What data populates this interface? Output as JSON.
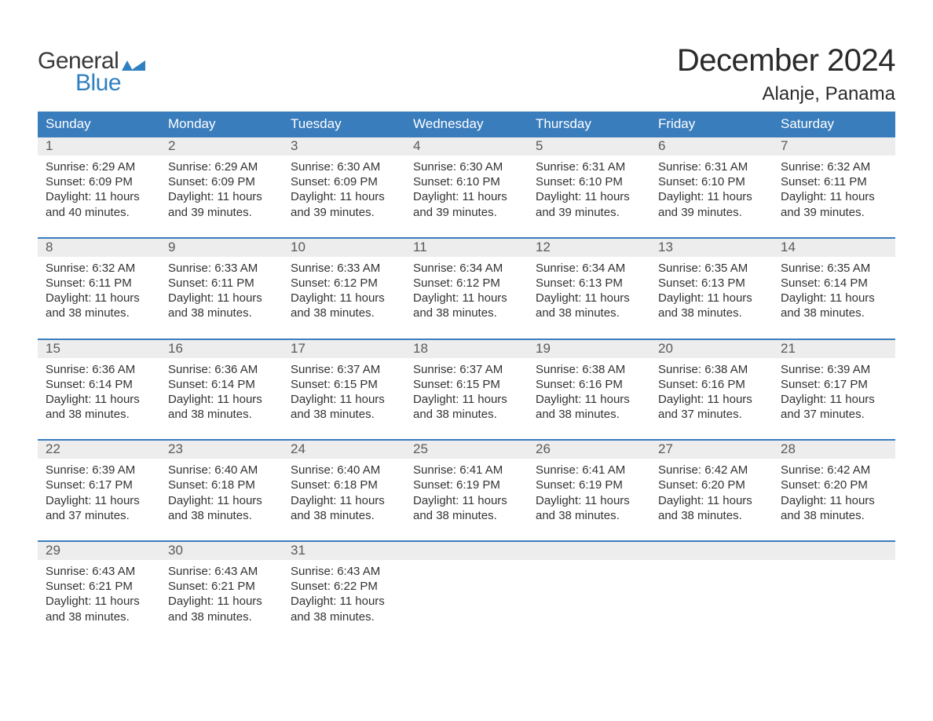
{
  "logo": {
    "word1": "General",
    "word2": "Blue"
  },
  "title": "December 2024",
  "location": "Alanje, Panama",
  "colors": {
    "header_bg": "#3a7dbd",
    "header_text": "#ffffff",
    "daynum_bg": "#ededed",
    "daynum_text": "#5a5a5a",
    "body_text": "#333333",
    "logo_gray": "#3a3a3a",
    "logo_blue": "#2f7fc1",
    "week_border": "#3a7dbd"
  },
  "dow": [
    "Sunday",
    "Monday",
    "Tuesday",
    "Wednesday",
    "Thursday",
    "Friday",
    "Saturday"
  ],
  "weeks": [
    [
      {
        "n": "1",
        "sr": "Sunrise: 6:29 AM",
        "ss": "Sunset: 6:09 PM",
        "d1": "Daylight: 11 hours",
        "d2": "and 40 minutes."
      },
      {
        "n": "2",
        "sr": "Sunrise: 6:29 AM",
        "ss": "Sunset: 6:09 PM",
        "d1": "Daylight: 11 hours",
        "d2": "and 39 minutes."
      },
      {
        "n": "3",
        "sr": "Sunrise: 6:30 AM",
        "ss": "Sunset: 6:09 PM",
        "d1": "Daylight: 11 hours",
        "d2": "and 39 minutes."
      },
      {
        "n": "4",
        "sr": "Sunrise: 6:30 AM",
        "ss": "Sunset: 6:10 PM",
        "d1": "Daylight: 11 hours",
        "d2": "and 39 minutes."
      },
      {
        "n": "5",
        "sr": "Sunrise: 6:31 AM",
        "ss": "Sunset: 6:10 PM",
        "d1": "Daylight: 11 hours",
        "d2": "and 39 minutes."
      },
      {
        "n": "6",
        "sr": "Sunrise: 6:31 AM",
        "ss": "Sunset: 6:10 PM",
        "d1": "Daylight: 11 hours",
        "d2": "and 39 minutes."
      },
      {
        "n": "7",
        "sr": "Sunrise: 6:32 AM",
        "ss": "Sunset: 6:11 PM",
        "d1": "Daylight: 11 hours",
        "d2": "and 39 minutes."
      }
    ],
    [
      {
        "n": "8",
        "sr": "Sunrise: 6:32 AM",
        "ss": "Sunset: 6:11 PM",
        "d1": "Daylight: 11 hours",
        "d2": "and 38 minutes."
      },
      {
        "n": "9",
        "sr": "Sunrise: 6:33 AM",
        "ss": "Sunset: 6:11 PM",
        "d1": "Daylight: 11 hours",
        "d2": "and 38 minutes."
      },
      {
        "n": "10",
        "sr": "Sunrise: 6:33 AM",
        "ss": "Sunset: 6:12 PM",
        "d1": "Daylight: 11 hours",
        "d2": "and 38 minutes."
      },
      {
        "n": "11",
        "sr": "Sunrise: 6:34 AM",
        "ss": "Sunset: 6:12 PM",
        "d1": "Daylight: 11 hours",
        "d2": "and 38 minutes."
      },
      {
        "n": "12",
        "sr": "Sunrise: 6:34 AM",
        "ss": "Sunset: 6:13 PM",
        "d1": "Daylight: 11 hours",
        "d2": "and 38 minutes."
      },
      {
        "n": "13",
        "sr": "Sunrise: 6:35 AM",
        "ss": "Sunset: 6:13 PM",
        "d1": "Daylight: 11 hours",
        "d2": "and 38 minutes."
      },
      {
        "n": "14",
        "sr": "Sunrise: 6:35 AM",
        "ss": "Sunset: 6:14 PM",
        "d1": "Daylight: 11 hours",
        "d2": "and 38 minutes."
      }
    ],
    [
      {
        "n": "15",
        "sr": "Sunrise: 6:36 AM",
        "ss": "Sunset: 6:14 PM",
        "d1": "Daylight: 11 hours",
        "d2": "and 38 minutes."
      },
      {
        "n": "16",
        "sr": "Sunrise: 6:36 AM",
        "ss": "Sunset: 6:14 PM",
        "d1": "Daylight: 11 hours",
        "d2": "and 38 minutes."
      },
      {
        "n": "17",
        "sr": "Sunrise: 6:37 AM",
        "ss": "Sunset: 6:15 PM",
        "d1": "Daylight: 11 hours",
        "d2": "and 38 minutes."
      },
      {
        "n": "18",
        "sr": "Sunrise: 6:37 AM",
        "ss": "Sunset: 6:15 PM",
        "d1": "Daylight: 11 hours",
        "d2": "and 38 minutes."
      },
      {
        "n": "19",
        "sr": "Sunrise: 6:38 AM",
        "ss": "Sunset: 6:16 PM",
        "d1": "Daylight: 11 hours",
        "d2": "and 38 minutes."
      },
      {
        "n": "20",
        "sr": "Sunrise: 6:38 AM",
        "ss": "Sunset: 6:16 PM",
        "d1": "Daylight: 11 hours",
        "d2": "and 37 minutes."
      },
      {
        "n": "21",
        "sr": "Sunrise: 6:39 AM",
        "ss": "Sunset: 6:17 PM",
        "d1": "Daylight: 11 hours",
        "d2": "and 37 minutes."
      }
    ],
    [
      {
        "n": "22",
        "sr": "Sunrise: 6:39 AM",
        "ss": "Sunset: 6:17 PM",
        "d1": "Daylight: 11 hours",
        "d2": "and 37 minutes."
      },
      {
        "n": "23",
        "sr": "Sunrise: 6:40 AM",
        "ss": "Sunset: 6:18 PM",
        "d1": "Daylight: 11 hours",
        "d2": "and 38 minutes."
      },
      {
        "n": "24",
        "sr": "Sunrise: 6:40 AM",
        "ss": "Sunset: 6:18 PM",
        "d1": "Daylight: 11 hours",
        "d2": "and 38 minutes."
      },
      {
        "n": "25",
        "sr": "Sunrise: 6:41 AM",
        "ss": "Sunset: 6:19 PM",
        "d1": "Daylight: 11 hours",
        "d2": "and 38 minutes."
      },
      {
        "n": "26",
        "sr": "Sunrise: 6:41 AM",
        "ss": "Sunset: 6:19 PM",
        "d1": "Daylight: 11 hours",
        "d2": "and 38 minutes."
      },
      {
        "n": "27",
        "sr": "Sunrise: 6:42 AM",
        "ss": "Sunset: 6:20 PM",
        "d1": "Daylight: 11 hours",
        "d2": "and 38 minutes."
      },
      {
        "n": "28",
        "sr": "Sunrise: 6:42 AM",
        "ss": "Sunset: 6:20 PM",
        "d1": "Daylight: 11 hours",
        "d2": "and 38 minutes."
      }
    ],
    [
      {
        "n": "29",
        "sr": "Sunrise: 6:43 AM",
        "ss": "Sunset: 6:21 PM",
        "d1": "Daylight: 11 hours",
        "d2": "and 38 minutes."
      },
      {
        "n": "30",
        "sr": "Sunrise: 6:43 AM",
        "ss": "Sunset: 6:21 PM",
        "d1": "Daylight: 11 hours",
        "d2": "and 38 minutes."
      },
      {
        "n": "31",
        "sr": "Sunrise: 6:43 AM",
        "ss": "Sunset: 6:22 PM",
        "d1": "Daylight: 11 hours",
        "d2": "and 38 minutes."
      },
      null,
      null,
      null,
      null
    ]
  ]
}
